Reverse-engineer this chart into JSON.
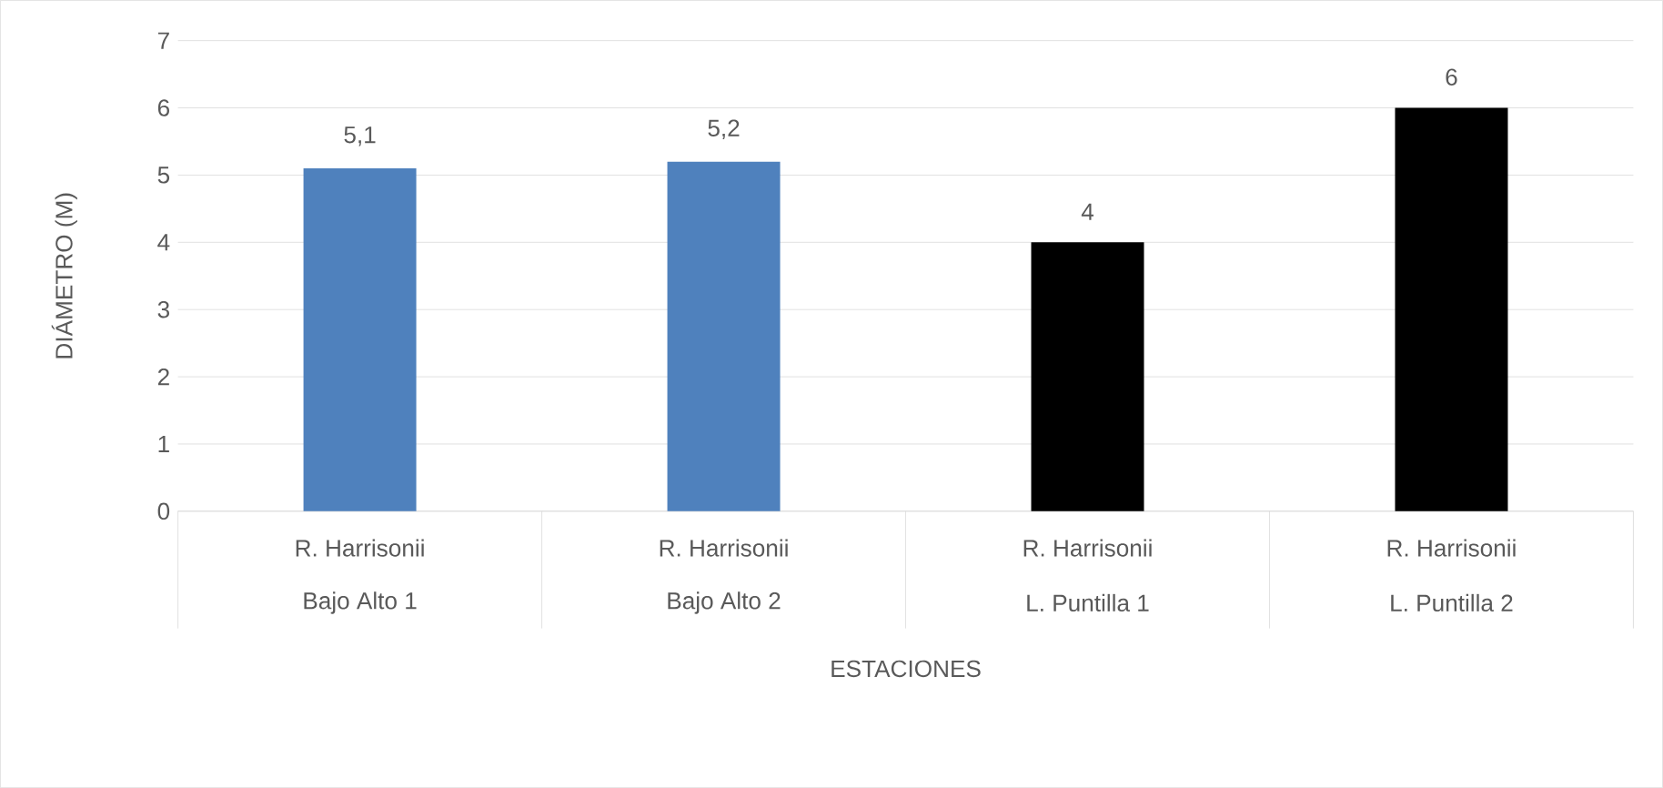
{
  "chart_data": {
    "type": "bar",
    "xlabel": "ESTACIONES",
    "ylabel": "DIÁMETRO (M)",
    "categories": [
      "Bajo Alto 1",
      "Bajo Alto 2",
      "L. Puntilla 1",
      "L. Puntilla 2"
    ],
    "annotations": [
      "R. Harrisonii",
      "R. Harrisonii",
      "R. Harrisonii",
      "R. Harrisonii"
    ],
    "values": [
      5.1,
      5.2,
      4,
      6
    ],
    "value_labels": [
      "5,1",
      "5,2",
      "4",
      "6"
    ],
    "colors": [
      "#4f81bd",
      "#4f81bd",
      "#000000",
      "#000000"
    ],
    "ylim": [
      0,
      7
    ],
    "yticks": [
      0,
      1,
      2,
      3,
      4,
      5,
      6,
      7
    ],
    "grid": "y"
  }
}
